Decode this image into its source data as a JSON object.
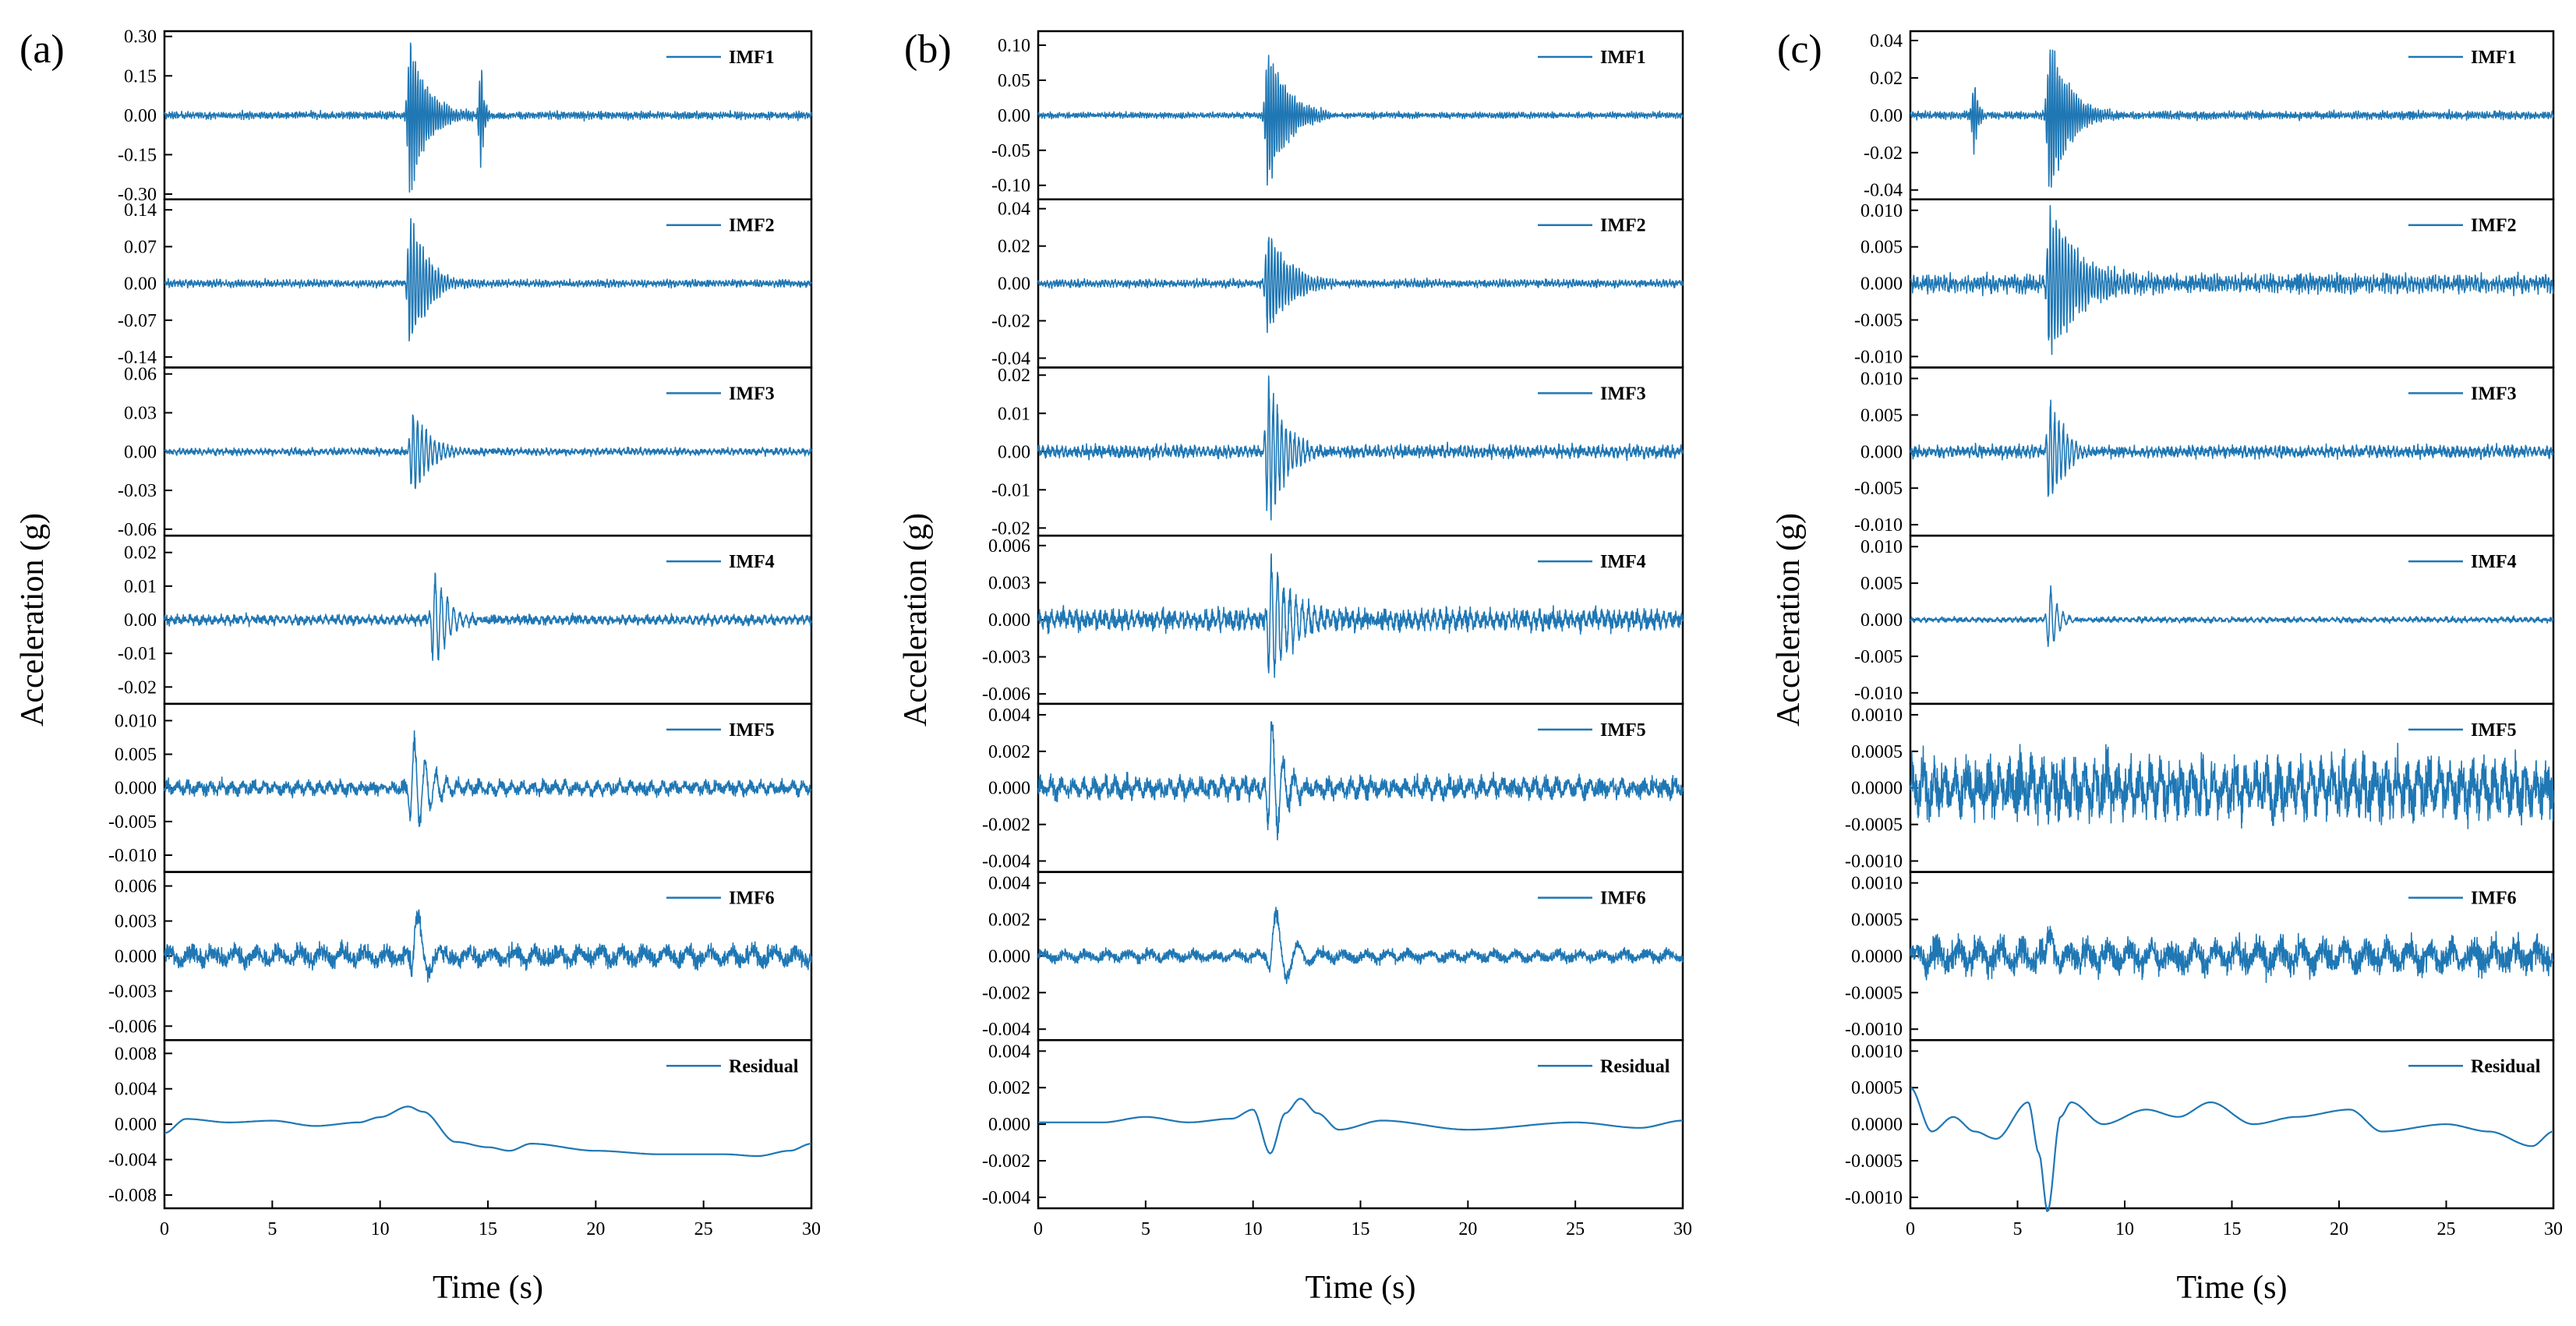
{
  "figure": {
    "ylabel": "Acceleration (g)",
    "xlabel": "Time (s)",
    "line_color": "#1f77b4"
  },
  "chart_data": [
    {
      "type": "line",
      "panel": "(a)",
      "xlabel": "Time (s)",
      "ylabel": "Acceleration (g)",
      "xlim": [
        0,
        30
      ],
      "xticks": [
        0,
        5,
        10,
        15,
        20,
        25,
        30
      ],
      "subplots": [
        {
          "name": "IMF1",
          "ylim": [
            -0.32,
            0.32
          ],
          "yticks": [
            "-0.30",
            "-0.15",
            "0.00",
            "0.15",
            "0.30"
          ],
          "events": [
            {
              "t": 11.4,
              "amp": 0.29,
              "dur": 1.6,
              "freq": 9
            },
            {
              "t": 14.7,
              "amp": 0.2,
              "dur": 0.25,
              "freq": 9
            }
          ],
          "noise": 0.01,
          "freq": 9
        },
        {
          "name": "IMF2",
          "ylim": [
            -0.16,
            0.16
          ],
          "yticks": [
            "-0.14",
            "-0.07",
            "0.00",
            "0.07",
            "0.14"
          ],
          "events": [
            {
              "t": 11.4,
              "amp": 0.13,
              "dur": 1.5,
              "freq": 7
            }
          ],
          "noise": 0.005,
          "freq": 7
        },
        {
          "name": "IMF3",
          "ylim": [
            -0.065,
            0.065
          ],
          "yticks": [
            "-0.06",
            "-0.03",
            "0.00",
            "0.03",
            "0.06"
          ],
          "events": [
            {
              "t": 11.5,
              "amp": 0.035,
              "dur": 1.6,
              "freq": 5
            }
          ],
          "noise": 0.002,
          "freq": 5
        },
        {
          "name": "IMF4",
          "ylim": [
            -0.025,
            0.025
          ],
          "yticks": [
            "-0.02",
            "-0.01",
            "0.00",
            "0.01",
            "0.02"
          ],
          "events": [
            {
              "t": 12.5,
              "amp": 0.015,
              "dur": 1.4,
              "freq": 3.5
            }
          ],
          "noise": 0.0012,
          "freq": 3.5
        },
        {
          "name": "IMF5",
          "ylim": [
            -0.0125,
            0.0125
          ],
          "yticks": [
            "-0.010",
            "-0.005",
            "0.000",
            "0.005",
            "0.010"
          ],
          "events": [
            {
              "t": 11.5,
              "amp": 0.008,
              "dur": 1.3,
              "freq": 2
            }
          ],
          "noise": 0.0009,
          "freq": 2
        },
        {
          "name": "IMF6",
          "ylim": [
            -0.0072,
            0.0072
          ],
          "yticks": [
            "-0.006",
            "-0.003",
            "0.000",
            "0.003",
            "0.006"
          ],
          "events": [
            {
              "t": 11.6,
              "amp": 0.0052,
              "dur": 1.3,
              "freq": 1
            }
          ],
          "noise": 0.0008,
          "freq": 1
        },
        {
          "name": "Residual",
          "ylim": [
            -0.0095,
            0.0095
          ],
          "yticks": [
            "-0.008",
            "-0.004",
            "0.000",
            "0.004",
            "0.008"
          ],
          "residual": [
            [
              0,
              -0.001
            ],
            [
              1,
              0.0006
            ],
            [
              3,
              0.0002
            ],
            [
              5,
              0.0004
            ],
            [
              7,
              -0.0002
            ],
            [
              9,
              0.0002
            ],
            [
              10,
              0.0008
            ],
            [
              11.3,
              0.002
            ],
            [
              12,
              0.0014
            ],
            [
              13.5,
              -0.002
            ],
            [
              15,
              -0.0026
            ],
            [
              16,
              -0.003
            ],
            [
              17,
              -0.0022
            ],
            [
              20,
              -0.003
            ],
            [
              23,
              -0.0034
            ],
            [
              26,
              -0.0034
            ],
            [
              27.5,
              -0.0036
            ],
            [
              29,
              -0.003
            ],
            [
              30,
              -0.0022
            ]
          ]
        }
      ]
    },
    {
      "type": "line",
      "panel": "(b)",
      "xlabel": "Time (s)",
      "ylabel": "Acceleration (g)",
      "xlim": [
        0,
        30
      ],
      "xticks": [
        0,
        5,
        10,
        15,
        20,
        25,
        30
      ],
      "subplots": [
        {
          "name": "IMF1",
          "ylim": [
            -0.12,
            0.12
          ],
          "yticks": [
            "-0.10",
            "-0.05",
            "0.00",
            "0.05",
            "0.10"
          ],
          "events": [
            {
              "t": 10.7,
              "amp": 0.1,
              "dur": 1.6,
              "freq": 9
            }
          ],
          "noise": 0.003,
          "freq": 9
        },
        {
          "name": "IMF2",
          "ylim": [
            -0.045,
            0.045
          ],
          "yticks": [
            "-0.04",
            "-0.02",
            "0.00",
            "0.02",
            "0.04"
          ],
          "events": [
            {
              "t": 10.7,
              "amp": 0.03,
              "dur": 1.8,
              "freq": 7
            }
          ],
          "noise": 0.0015,
          "freq": 7
        },
        {
          "name": "IMF3",
          "ylim": [
            -0.022,
            0.022
          ],
          "yticks": [
            "-0.02",
            "-0.01",
            "0.00",
            "0.01",
            "0.02"
          ],
          "events": [
            {
              "t": 10.7,
              "amp": 0.02,
              "dur": 1.6,
              "freq": 5
            }
          ],
          "noise": 0.0012,
          "freq": 5
        },
        {
          "name": "IMF4",
          "ylim": [
            -0.0068,
            0.0068
          ],
          "yticks": [
            "-0.006",
            "-0.003",
            "0.000",
            "0.003",
            "0.006"
          ],
          "events": [
            {
              "t": 10.8,
              "amp": 0.0055,
              "dur": 2.2,
              "freq": 3.5
            }
          ],
          "noise": 0.0007,
          "freq": 3.5
        },
        {
          "name": "IMF5",
          "ylim": [
            -0.0046,
            0.0046
          ],
          "yticks": [
            "-0.004",
            "-0.002",
            "0.000",
            "0.002",
            "0.004"
          ],
          "events": [
            {
              "t": 10.8,
              "amp": 0.0045,
              "dur": 1.2,
              "freq": 2
            }
          ],
          "noise": 0.0005,
          "freq": 2
        },
        {
          "name": "IMF6",
          "ylim": [
            -0.0046,
            0.0046
          ],
          "yticks": [
            "-0.004",
            "-0.002",
            "0.000",
            "0.002",
            "0.004"
          ],
          "events": [
            {
              "t": 10.9,
              "amp": 0.003,
              "dur": 1.3,
              "freq": 1
            }
          ],
          "noise": 0.0003,
          "freq": 1
        },
        {
          "name": "Residual",
          "ylim": [
            -0.0046,
            0.0046
          ],
          "yticks": [
            "-0.004",
            "-0.002",
            "0.000",
            "0.002",
            "0.004"
          ],
          "residual": [
            [
              0,
              0.0001
            ],
            [
              3,
              0.0001
            ],
            [
              5,
              0.0004
            ],
            [
              7,
              0.0001
            ],
            [
              9,
              0.0003
            ],
            [
              10,
              0.0008
            ],
            [
              10.8,
              -0.0016
            ],
            [
              11.5,
              0.0006
            ],
            [
              12.2,
              0.0014
            ],
            [
              13,
              0.0006
            ],
            [
              14,
              -0.0003
            ],
            [
              16,
              0.0002
            ],
            [
              20,
              -0.0003
            ],
            [
              25,
              0.0001
            ],
            [
              28,
              -0.0002
            ],
            [
              30,
              0.0002
            ]
          ]
        }
      ]
    },
    {
      "type": "line",
      "panel": "(c)",
      "xlabel": "Time (s)",
      "ylabel": "Acceleration (g)",
      "xlim": [
        0,
        30
      ],
      "xticks": [
        0,
        5,
        10,
        15,
        20,
        25,
        30
      ],
      "subplots": [
        {
          "name": "IMF1",
          "ylim": [
            -0.045,
            0.045
          ],
          "yticks": [
            "-0.04",
            "-0.02",
            "0.00",
            "0.02",
            "0.04"
          ],
          "events": [
            {
              "t": 6.5,
              "amp": 0.04,
              "dur": 1.8,
              "freq": 9
            },
            {
              "t": 3.0,
              "amp": 0.02,
              "dur": 0.3,
              "freq": 9
            }
          ],
          "noise": 0.0015,
          "freq": 9
        },
        {
          "name": "IMF2",
          "ylim": [
            -0.0115,
            0.0115
          ],
          "yticks": [
            "-0.010",
            "-0.005",
            "0.000",
            "0.005",
            "0.010"
          ],
          "events": [
            {
              "t": 6.5,
              "amp": 0.011,
              "dur": 2.2,
              "freq": 7
            }
          ],
          "noise": 0.0009,
          "freq": 7
        },
        {
          "name": "IMF3",
          "ylim": [
            -0.0115,
            0.0115
          ],
          "yticks": [
            "-0.010",
            "-0.005",
            "0.000",
            "0.005",
            "0.010"
          ],
          "events": [
            {
              "t": 6.5,
              "amp": 0.0075,
              "dur": 1.5,
              "freq": 5
            }
          ],
          "noise": 0.0006,
          "freq": 5
        },
        {
          "name": "IMF4",
          "ylim": [
            -0.0115,
            0.0115
          ],
          "yticks": [
            "-0.010",
            "-0.005",
            "0.000",
            "0.005",
            "0.010"
          ],
          "events": [
            {
              "t": 6.5,
              "amp": 0.0048,
              "dur": 0.8,
              "freq": 3.5
            }
          ],
          "noise": 0.0003,
          "freq": 3.5
        },
        {
          "name": "IMF5",
          "ylim": [
            -0.00115,
            0.00115
          ],
          "yticks": [
            "-0.0010",
            "-0.0005",
            "0.0000",
            "0.0005",
            "0.0010"
          ],
          "events": [],
          "noise": 0.00035,
          "freq": 2
        },
        {
          "name": "IMF6",
          "ylim": [
            -0.00115,
            0.00115
          ],
          "yticks": [
            "-0.0010",
            "-0.0005",
            "0.0000",
            "0.0005",
            "0.0010"
          ],
          "events": [
            {
              "t": 6.4,
              "amp": 0.0005,
              "dur": 1.2,
              "freq": 1
            }
          ],
          "noise": 0.0002,
          "freq": 1
        },
        {
          "name": "Residual",
          "ylim": [
            -0.00115,
            0.00115
          ],
          "yticks": [
            "-0.0010",
            "-0.0005",
            "0.0000",
            "0.0005",
            "0.0010"
          ],
          "residual": [
            [
              0,
              0.0005
            ],
            [
              1,
              -0.0001
            ],
            [
              2,
              0.0001
            ],
            [
              3,
              -0.0001
            ],
            [
              4,
              -0.0002
            ],
            [
              5.5,
              0.0003
            ],
            [
              6,
              -0.0004
            ],
            [
              6.4,
              -0.0012
            ],
            [
              7,
              0.0001
            ],
            [
              7.5,
              0.0003
            ],
            [
              9,
              0.0
            ],
            [
              11,
              0.0002
            ],
            [
              12.5,
              0.0001
            ],
            [
              14,
              0.0003
            ],
            [
              16,
              0.0
            ],
            [
              18,
              0.0001
            ],
            [
              20.5,
              0.0002
            ],
            [
              22,
              -0.0001
            ],
            [
              25,
              0.0
            ],
            [
              27,
              -0.0001
            ],
            [
              29,
              -0.0003
            ],
            [
              30,
              -0.0001
            ]
          ]
        }
      ]
    }
  ]
}
